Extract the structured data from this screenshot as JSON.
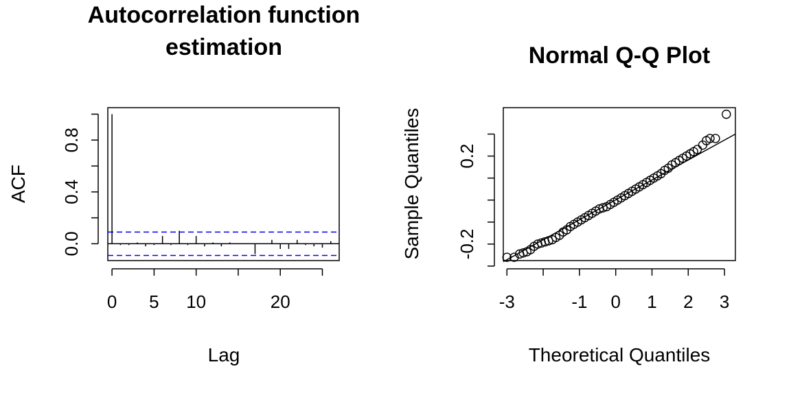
{
  "chart_data": [
    {
      "type": "bar",
      "title_lines": [
        "Autocorrelation function",
        "estimation"
      ],
      "xlabel": "Lag",
      "ylabel": "ACF",
      "x_ticks": [
        0,
        5,
        10,
        20
      ],
      "y_ticks": [
        0.0,
        0.4,
        0.8
      ],
      "y_tick_labels": [
        "0.0",
        "0.4",
        "0.8"
      ],
      "y_minor_ticks": [
        0.2,
        0.6,
        1.0
      ],
      "x_tick_marks": [
        0,
        5,
        10,
        15,
        20,
        25
      ],
      "xlim": [
        -0.5,
        27
      ],
      "ylim": [
        -0.13,
        1.05
      ],
      "lags": [
        0,
        1,
        2,
        3,
        4,
        5,
        6,
        7,
        8,
        9,
        10,
        11,
        12,
        13,
        14,
        15,
        16,
        17,
        18,
        19,
        20,
        21,
        22,
        23,
        24,
        25,
        26
      ],
      "acf": [
        1.0,
        -0.01,
        -0.01,
        0.01,
        -0.02,
        -0.01,
        0.06,
        -0.01,
        0.1,
        -0.01,
        0.06,
        -0.02,
        0.01,
        -0.02,
        0.01,
        0.0,
        0.0,
        -0.08,
        0.0,
        0.03,
        -0.04,
        -0.04,
        0.03,
        -0.01,
        -0.02,
        -0.03,
        0.02
      ],
      "confidence_bound": 0.09,
      "bound_color": "#0000ee"
    },
    {
      "type": "scatter",
      "title": "Normal Q-Q Plot",
      "xlabel": "Theoretical Quantiles",
      "ylabel": "Sample Quantiles",
      "x_ticks": [
        -3,
        -2,
        -1,
        0,
        1,
        2,
        3
      ],
      "x_tick_labels": [
        "-3",
        "",
        "-1",
        "0",
        "1",
        "2",
        "3"
      ],
      "y_ticks": [
        -0.3,
        -0.2,
        -0.1,
        0.0,
        0.1,
        0.2,
        0.3
      ],
      "y_tick_labels": [
        "",
        "-0.2",
        "",
        "",
        "",
        "0.2",
        ""
      ],
      "xlim": [
        -3.1,
        3.3
      ],
      "ylim": [
        -0.275,
        0.42
      ],
      "qq_line": {
        "x1": -3.1,
        "y1": -0.28,
        "x2": 3.3,
        "y2": 0.3
      },
      "points": {
        "x": [
          -3.0,
          -2.8,
          -2.65,
          -2.55,
          -2.45,
          -2.35,
          -2.25,
          -2.15,
          -2.05,
          -1.95,
          -1.85,
          -1.75,
          -1.65,
          -1.55,
          -1.45,
          -1.35,
          -1.25,
          -1.15,
          -1.05,
          -0.95,
          -0.85,
          -0.75,
          -0.65,
          -0.55,
          -0.45,
          -0.35,
          -0.25,
          -0.15,
          -0.05,
          0.05,
          0.15,
          0.25,
          0.35,
          0.45,
          0.55,
          0.65,
          0.75,
          0.85,
          0.95,
          1.05,
          1.15,
          1.25,
          1.35,
          1.45,
          1.55,
          1.65,
          1.75,
          1.85,
          1.95,
          2.05,
          2.15,
          2.25,
          2.4,
          2.5,
          2.6,
          2.75,
          3.05
        ],
        "y": [
          -0.26,
          -0.26,
          -0.245,
          -0.24,
          -0.235,
          -0.225,
          -0.21,
          -0.2,
          -0.195,
          -0.19,
          -0.185,
          -0.18,
          -0.17,
          -0.16,
          -0.145,
          -0.135,
          -0.12,
          -0.11,
          -0.1,
          -0.09,
          -0.08,
          -0.07,
          -0.06,
          -0.05,
          -0.04,
          -0.035,
          -0.03,
          -0.02,
          -0.01,
          0.0,
          0.01,
          0.02,
          0.03,
          0.04,
          0.05,
          0.06,
          0.07,
          0.08,
          0.09,
          0.1,
          0.11,
          0.12,
          0.135,
          0.145,
          0.16,
          0.17,
          0.18,
          0.19,
          0.2,
          0.21,
          0.22,
          0.23,
          0.25,
          0.27,
          0.28,
          0.28,
          0.39
        ]
      }
    }
  ]
}
